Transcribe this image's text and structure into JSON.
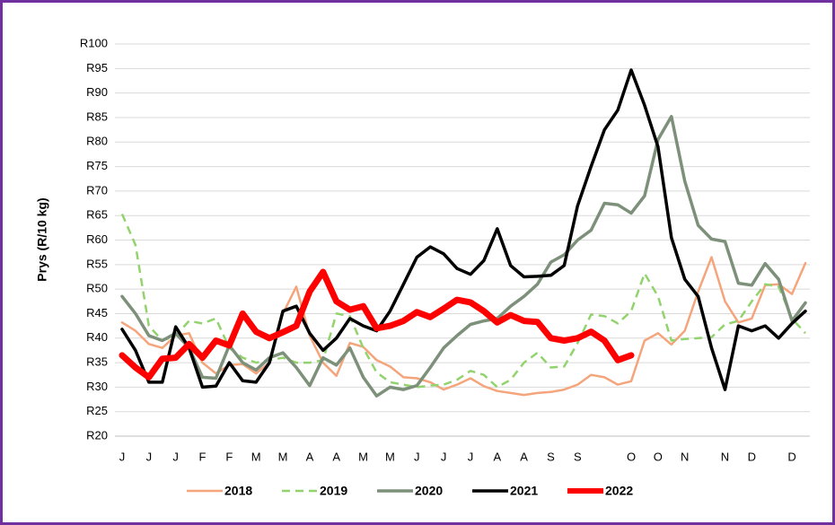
{
  "chart_data": {
    "type": "line",
    "ylabel": "Prys (R/10 kg)",
    "categories": [
      "J",
      null,
      "J",
      null,
      "J",
      null,
      "F",
      null,
      "F",
      null,
      "M",
      null,
      "M",
      null,
      "A",
      null,
      "A",
      null,
      "M",
      null,
      "M",
      null,
      "J",
      null,
      "J",
      null,
      "J",
      null,
      "A",
      null,
      "A",
      null,
      "S",
      null,
      "S",
      null,
      null,
      null,
      "O",
      null,
      "O",
      null,
      "N",
      null,
      null,
      "N",
      null,
      "D",
      null,
      null,
      "D",
      null
    ],
    "ylim": [
      20,
      100
    ],
    "yticks": [
      {
        "value": 20,
        "label": "R20"
      },
      {
        "value": 25,
        "label": "R25"
      },
      {
        "value": 30,
        "label": "R30"
      },
      {
        "value": 35,
        "label": "R35"
      },
      {
        "value": 40,
        "label": "R40"
      },
      {
        "value": 45,
        "label": "R45"
      },
      {
        "value": 50,
        "label": "R50"
      },
      {
        "value": 55,
        "label": "R55"
      },
      {
        "value": 60,
        "label": "R60"
      },
      {
        "value": 65,
        "label": "R65"
      },
      {
        "value": 70,
        "label": "R70"
      },
      {
        "value": 75,
        "label": "R75"
      },
      {
        "value": 80,
        "label": "R80"
      },
      {
        "value": 85,
        "label": "R85"
      },
      {
        "value": 90,
        "label": "R90"
      },
      {
        "value": 95,
        "label": "R95"
      },
      {
        "value": 100,
        "label": "R100"
      }
    ],
    "grid": true,
    "legend": "bottom",
    "series": [
      {
        "name": "2018",
        "color": "#f4a57c",
        "values": [
          43.2,
          41.5,
          38.8,
          38,
          40.5,
          41,
          35,
          32.8,
          34.5,
          34.7,
          32.8,
          35,
          45,
          50.5,
          40.5,
          35,
          32.3,
          39,
          38.2,
          35.5,
          34.2,
          32,
          31.8,
          31,
          29.5,
          30.5,
          31.8,
          30.2,
          29.2,
          28.8,
          28.4,
          28.8,
          29,
          29.5,
          30.5,
          32.5,
          32,
          30.5,
          31.2,
          39.5,
          41,
          38.7,
          41.5,
          49.5,
          56.5,
          47.5,
          43.2,
          44,
          50.8,
          51,
          49,
          55.3
        ]
      },
      {
        "name": "2019",
        "color": "#92d36e",
        "dashed": true,
        "values": [
          65.3,
          59,
          42.5,
          39.5,
          40.5,
          43.5,
          43,
          44,
          38,
          36,
          35,
          35.5,
          36,
          35,
          35,
          35.5,
          45,
          44.5,
          38,
          33,
          31,
          30.5,
          30,
          30.3,
          30.5,
          31.5,
          33.3,
          32.5,
          30,
          31.5,
          35,
          37,
          34,
          34.2,
          39,
          44.8,
          44.5,
          43,
          45.5,
          53.2,
          48.5,
          39.5,
          39.8,
          40,
          40.2,
          42.8,
          43.5,
          47.5,
          51,
          50.5,
          44,
          41
        ]
      },
      {
        "name": "2020",
        "color": "#7d917a",
        "values": [
          48.5,
          45,
          40.5,
          39.5,
          41,
          38,
          32,
          31.8,
          38.5,
          35,
          33.5,
          36,
          37,
          34,
          30.3,
          36,
          34.5,
          38,
          32,
          28.2,
          30,
          29.5,
          30.3,
          34,
          38,
          40.5,
          42.8,
          43.5,
          44,
          46.5,
          48.5,
          51,
          55.5,
          57,
          60,
          62,
          67.5,
          67.2,
          65.5,
          69,
          80.5,
          85.2,
          72,
          63,
          60.2,
          59.7,
          51.2,
          50.8,
          55.2,
          52,
          43.5,
          47.2
        ]
      },
      {
        "name": "2021",
        "color": "#000000",
        "values": [
          41.8,
          37.5,
          31,
          31,
          42.3,
          38,
          30,
          30.2,
          35,
          31.3,
          31,
          35,
          45.5,
          46.5,
          41,
          37.5,
          40,
          44,
          42.5,
          41.5,
          45.5,
          51,
          56.5,
          58.6,
          57.2,
          54.2,
          53,
          55.8,
          62.3,
          54.8,
          52.5,
          52.6,
          52.8,
          54.8,
          67,
          75,
          82.5,
          86.5,
          94.7,
          87.5,
          79,
          60.5,
          52,
          48.5,
          38,
          29.5,
          42.5,
          41.5,
          42.5,
          40,
          43,
          45.5
        ]
      },
      {
        "name": "2022",
        "color": "#ff0000",
        "values": [
          36.5,
          34,
          32,
          35.8,
          36,
          38.8,
          36,
          39.5,
          38.5,
          45,
          41.3,
          40,
          41.2,
          42.5,
          49.5,
          53.5,
          47.5,
          45.8,
          46.5,
          42,
          42.5,
          43.5,
          45.3,
          44.3,
          46,
          47.8,
          47.3,
          45.5,
          43.2,
          44.7,
          43.5,
          43.3,
          40,
          39.5,
          40,
          41.3,
          39.5,
          35.5,
          36.5,
          null,
          null,
          null,
          null,
          null,
          null,
          null,
          null,
          null,
          null,
          null,
          null,
          null
        ]
      }
    ]
  }
}
